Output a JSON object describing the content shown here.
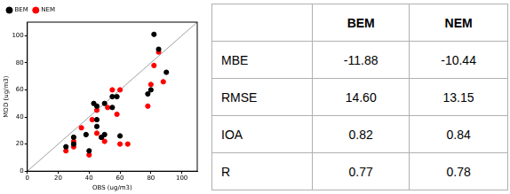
{
  "chart_data": {
    "type": "scatter",
    "x_label": "OBS (ug/m3)",
    "y_label": "MOD (ug/m3)",
    "xlim": [
      0,
      110
    ],
    "ylim": [
      0,
      110
    ],
    "xticks": [
      0,
      20,
      40,
      60,
      80,
      100
    ],
    "yticks": [
      0,
      20,
      40,
      60,
      80,
      100
    ],
    "grid": false,
    "legend": "upper left",
    "series": [
      {
        "name": "BEM",
        "color": "#000000",
        "marker": "circle",
        "x": [
          25,
          30,
          30,
          38,
          40,
          43,
          45,
          45,
          45,
          48,
          50,
          50,
          55,
          55,
          58,
          60,
          78,
          80,
          82,
          85,
          90
        ],
        "values": [
          18,
          20,
          25,
          27,
          15,
          50,
          38,
          48,
          33,
          25,
          50,
          27,
          47,
          55,
          55,
          26,
          57,
          60,
          101,
          90,
          73
        ]
      },
      {
        "name": "NEM",
        "color": "#ff0000",
        "marker": "circle",
        "x": [
          25,
          30,
          30,
          35,
          40,
          42,
          45,
          45,
          48,
          50,
          52,
          55,
          58,
          60,
          60,
          65,
          78,
          80,
          82,
          85,
          88
        ],
        "values": [
          15,
          22,
          18,
          32,
          12,
          38,
          45,
          28,
          25,
          22,
          47,
          60,
          42,
          60,
          20,
          20,
          48,
          64,
          78,
          88,
          66
        ]
      }
    ]
  },
  "table": {
    "columns": [
      "BEM",
      "NEM"
    ],
    "rows": [
      {
        "label": "MBE",
        "values": [
          "-11.88",
          "-10.44"
        ]
      },
      {
        "label": "RMSE",
        "values": [
          "14.60",
          "13.15"
        ]
      },
      {
        "label": "IOA",
        "values": [
          "0.82",
          "0.84"
        ]
      },
      {
        "label": "R",
        "values": [
          "0.77",
          "0.78"
        ]
      }
    ]
  }
}
